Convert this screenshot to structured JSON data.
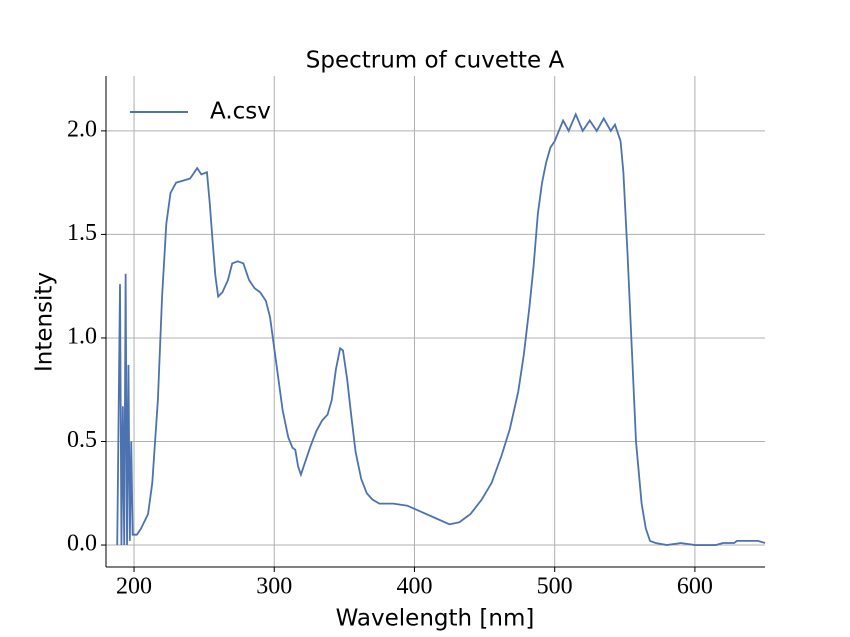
{
  "chart_data": {
    "type": "line",
    "title": "Spectrum of cuvette A",
    "xlabel": "Wavelength [nm]",
    "ylabel": "Intensity",
    "x": [
      188,
      190,
      191,
      192,
      193,
      194,
      195,
      196,
      197,
      198,
      199,
      202,
      205,
      210,
      213,
      217,
      220,
      223,
      226,
      230,
      235,
      240,
      245,
      248,
      252,
      254,
      256,
      258,
      260,
      263,
      267,
      270,
      274,
      278,
      282,
      286,
      290,
      294,
      297,
      300,
      303,
      306,
      310,
      313,
      315,
      317,
      319,
      322,
      326,
      330,
      334,
      338,
      341,
      344,
      347,
      349,
      352,
      355,
      358,
      362,
      366,
      370,
      375,
      385,
      395,
      405,
      415,
      425,
      432,
      440,
      448,
      455,
      462,
      468,
      474,
      478,
      482,
      485,
      488,
      491,
      494,
      497,
      500,
      503,
      506,
      510,
      515,
      520,
      525,
      530,
      535,
      540,
      543,
      547,
      549,
      552,
      555,
      558,
      562,
      565,
      568,
      572,
      580,
      590,
      600,
      615,
      620,
      628,
      630,
      645,
      650
    ],
    "series": [
      {
        "name": "A.csv",
        "color": "#4c72b0",
        "values": [
          0.0,
          1.26,
          0.0,
          0.67,
          0.0,
          1.31,
          0.0,
          0.87,
          0.02,
          0.5,
          0.05,
          0.05,
          0.08,
          0.15,
          0.3,
          0.7,
          1.2,
          1.55,
          1.7,
          1.75,
          1.76,
          1.77,
          1.82,
          1.79,
          1.8,
          1.65,
          1.47,
          1.3,
          1.2,
          1.22,
          1.28,
          1.36,
          1.37,
          1.36,
          1.28,
          1.24,
          1.22,
          1.18,
          1.1,
          0.95,
          0.8,
          0.65,
          0.52,
          0.47,
          0.46,
          0.38,
          0.34,
          0.4,
          0.48,
          0.55,
          0.6,
          0.63,
          0.7,
          0.85,
          0.95,
          0.94,
          0.8,
          0.62,
          0.45,
          0.32,
          0.25,
          0.22,
          0.2,
          0.2,
          0.19,
          0.16,
          0.13,
          0.1,
          0.11,
          0.15,
          0.22,
          0.3,
          0.43,
          0.56,
          0.74,
          0.92,
          1.15,
          1.35,
          1.6,
          1.75,
          1.85,
          1.92,
          1.95,
          2.0,
          2.05,
          2.0,
          2.08,
          2.0,
          2.05,
          2.0,
          2.06,
          2.0,
          2.03,
          1.95,
          1.8,
          1.4,
          0.95,
          0.5,
          0.2,
          0.08,
          0.02,
          0.01,
          0.0,
          0.01,
          0.0,
          0.0,
          0.01,
          0.01,
          0.02,
          0.02,
          0.01
        ]
      }
    ],
    "xlim": [
      180,
      650
    ],
    "ylim": [
      -0.106,
      2.265
    ],
    "xticks": [
      200,
      300,
      400,
      500,
      600
    ],
    "yticks": [
      {
        "value": 0,
        "label": "0.0"
      },
      {
        "value": 0.5,
        "label": "0.5"
      },
      {
        "value": 1,
        "label": "1.0"
      },
      {
        "value": 1.5,
        "label": "1.5"
      },
      {
        "value": 2,
        "label": "2.0"
      }
    ],
    "grid": true,
    "legend_loc": "upper left"
  }
}
